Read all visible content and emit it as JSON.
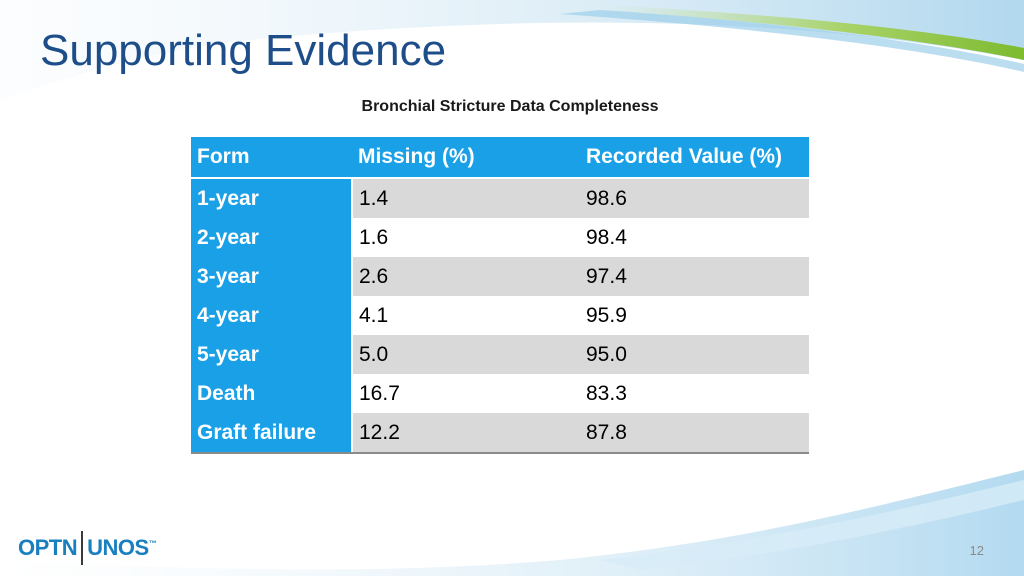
{
  "slide": {
    "title": "Supporting Evidence",
    "subtitle": "Bronchial Stricture Data Completeness",
    "page_number": "12"
  },
  "table": {
    "headers": [
      "Form",
      "Missing (%)",
      "Recorded Value (%)"
    ],
    "rows": [
      [
        "1-year",
        "1.4",
        "98.6"
      ],
      [
        "2-year",
        "1.6",
        "98.4"
      ],
      [
        "3-year",
        "2.6",
        "97.4"
      ],
      [
        "4-year",
        "4.1",
        "95.9"
      ],
      [
        "5-year",
        "5.0",
        "95.0"
      ],
      [
        "Death",
        "16.7",
        "83.3"
      ],
      [
        "Graft failure",
        "12.2",
        "87.8"
      ]
    ]
  },
  "logo": {
    "left_text": "OPTN",
    "right_text": "UNOS",
    "trademark": "™"
  },
  "colors": {
    "title": "#1d4e89",
    "header_bg": "#1aa0e6",
    "band_gray": "#d9d9d9",
    "logo_blue": "#1a7fc1",
    "swoosh_green": "#8cc63f",
    "swoosh_blue": "#8ecae6"
  }
}
